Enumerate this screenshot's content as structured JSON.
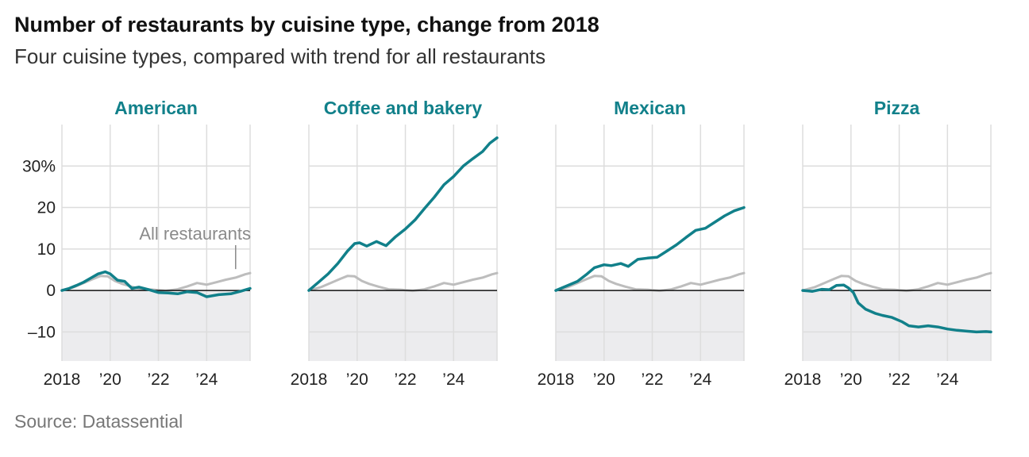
{
  "header": {
    "title": "Number of restaurants by cuisine type, change from 2018",
    "subtitle": "Four cuisine types, compared with trend for all restaurants"
  },
  "footer": {
    "source": "Source: Datassential"
  },
  "colors": {
    "cuisine": "#11808a",
    "all_restaurants": "#bdbdbd",
    "negative_area": "#ececee",
    "grid": "#dddddd",
    "zero_line": "#111111",
    "tick_text": "#222222",
    "annotation": "#8a8a8a"
  },
  "chart_data": {
    "type": "line",
    "small_multiples": true,
    "ylim": [
      -17,
      40
    ],
    "y_ticks": [
      30,
      20,
      10,
      0,
      -10
    ],
    "y_tick_labels": [
      "30%",
      "20",
      "10",
      "0",
      "–10"
    ],
    "xlim": [
      2018,
      2025.8
    ],
    "x_ticks": [
      2018,
      2020,
      2022,
      2024
    ],
    "x_tick_labels": [
      "2018",
      "’20",
      "’22",
      "’24"
    ],
    "grid": true,
    "negative_region_shaded": true,
    "annotation": {
      "text": "All restaurants",
      "panel": 0,
      "x": 2025.2,
      "y": 4.2
    },
    "reference_series": {
      "name": "All restaurants",
      "x": [
        2018,
        2018.5,
        2018.9,
        2019.3,
        2019.6,
        2019.9,
        2020.2,
        2020.5,
        2020.9,
        2021.3,
        2021.8,
        2022.3,
        2022.8,
        2023.2,
        2023.6,
        2024.0,
        2024.4,
        2024.8,
        2025.2,
        2025.6,
        2025.8
      ],
      "values": [
        0.0,
        0.8,
        1.8,
        2.8,
        3.5,
        3.4,
        2.3,
        1.6,
        0.9,
        0.3,
        0.2,
        -0.1,
        0.3,
        1.0,
        1.8,
        1.4,
        2.0,
        2.6,
        3.1,
        3.9,
        4.2
      ]
    },
    "panels": [
      {
        "title": "American",
        "x": [
          2018,
          2018.3,
          2018.6,
          2018.9,
          2019.2,
          2019.5,
          2019.8,
          2020.0,
          2020.3,
          2020.6,
          2020.9,
          2021.2,
          2021.6,
          2022.0,
          2022.4,
          2022.8,
          2023.2,
          2023.6,
          2024.0,
          2024.5,
          2025.0,
          2025.4,
          2025.8
        ],
        "values": [
          0.0,
          0.5,
          1.2,
          2.0,
          3.0,
          4.0,
          4.5,
          4.0,
          2.5,
          2.2,
          0.5,
          0.8,
          0.2,
          -0.5,
          -0.6,
          -0.8,
          -0.3,
          -0.5,
          -1.5,
          -1.0,
          -0.8,
          -0.2,
          0.5
        ]
      },
      {
        "title": "Coffee and bakery",
        "x": [
          2018,
          2018.4,
          2018.8,
          2019.2,
          2019.6,
          2019.9,
          2020.1,
          2020.4,
          2020.8,
          2021.2,
          2021.6,
          2022.0,
          2022.4,
          2022.8,
          2023.2,
          2023.6,
          2024.0,
          2024.4,
          2024.8,
          2025.2,
          2025.5,
          2025.8
        ],
        "values": [
          0.0,
          2.0,
          4.0,
          6.5,
          9.5,
          11.3,
          11.5,
          10.7,
          11.8,
          10.8,
          13.0,
          14.8,
          17.0,
          19.8,
          22.5,
          25.5,
          27.5,
          30.0,
          31.8,
          33.5,
          35.5,
          36.8
        ]
      },
      {
        "title": "Mexican",
        "x": [
          2018,
          2018.5,
          2018.9,
          2019.3,
          2019.6,
          2020.0,
          2020.3,
          2020.7,
          2021.0,
          2021.4,
          2021.8,
          2022.2,
          2022.6,
          2023.0,
          2023.4,
          2023.8,
          2024.2,
          2024.6,
          2025.0,
          2025.4,
          2025.8
        ],
        "values": [
          0.0,
          1.2,
          2.2,
          4.0,
          5.5,
          6.2,
          6.0,
          6.5,
          5.8,
          7.5,
          7.8,
          8.0,
          9.5,
          11.0,
          12.8,
          14.5,
          15.0,
          16.5,
          18.0,
          19.2,
          20.0
        ]
      },
      {
        "title": "Pizza",
        "x": [
          2018,
          2018.4,
          2018.8,
          2019.1,
          2019.4,
          2019.7,
          2019.9,
          2020.1,
          2020.3,
          2020.6,
          2021.0,
          2021.3,
          2021.7,
          2022.1,
          2022.4,
          2022.8,
          2023.2,
          2023.6,
          2024.0,
          2024.4,
          2024.8,
          2025.2,
          2025.6,
          2025.8
        ],
        "values": [
          0.0,
          -0.2,
          0.3,
          0.2,
          1.2,
          1.3,
          0.6,
          -0.5,
          -3.0,
          -4.5,
          -5.5,
          -6.0,
          -6.5,
          -7.5,
          -8.5,
          -8.8,
          -8.5,
          -8.8,
          -9.3,
          -9.6,
          -9.8,
          -10.0,
          -9.9,
          -10.0
        ]
      }
    ]
  }
}
